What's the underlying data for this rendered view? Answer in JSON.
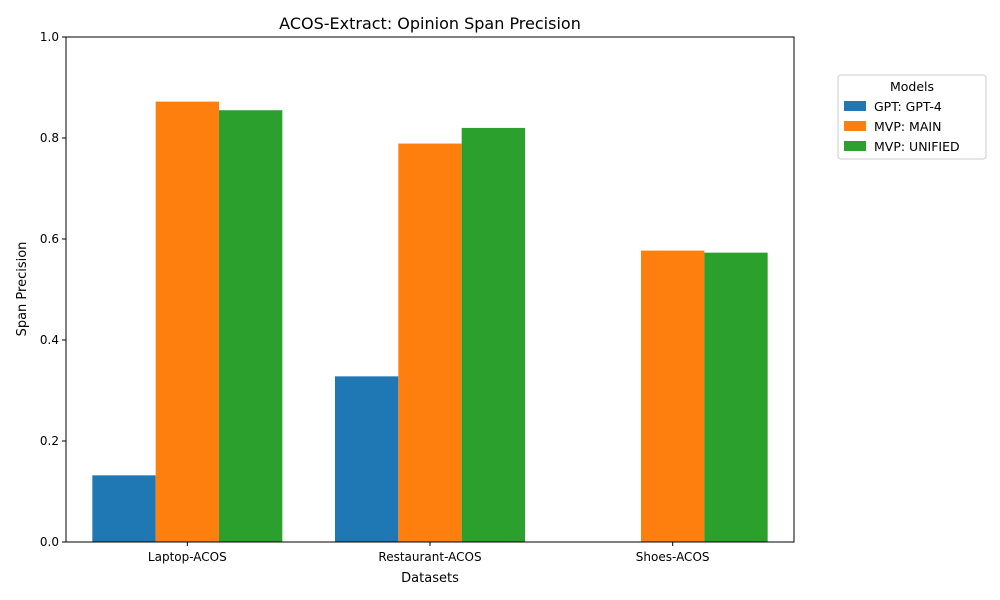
{
  "chart_data": {
    "type": "bar",
    "title": "ACOS-Extract: Opinion Span Precision",
    "xlabel": "Datasets",
    "ylabel": "Span Precision",
    "categories": [
      "Laptop-ACOS",
      "Restaurant-ACOS",
      "Shoes-ACOS"
    ],
    "series": [
      {
        "name": "GPT: GPT-4",
        "color": "#1f77b4",
        "values": [
          0.132,
          0.328,
          0.0
        ]
      },
      {
        "name": "MVP: MAIN",
        "color": "#ff7f0e",
        "values": [
          0.872,
          0.789,
          0.577
        ]
      },
      {
        "name": "MVP: UNIFIED",
        "color": "#2ca02c",
        "values": [
          0.855,
          0.82,
          0.573
        ]
      }
    ],
    "ylim": [
      0,
      1
    ],
    "yticks": [
      "0.0",
      "0.2",
      "0.4",
      "0.6",
      "0.8",
      "1.0"
    ],
    "legend": {
      "title": "Models",
      "placement": "outside-top-right"
    },
    "grid": false
  }
}
